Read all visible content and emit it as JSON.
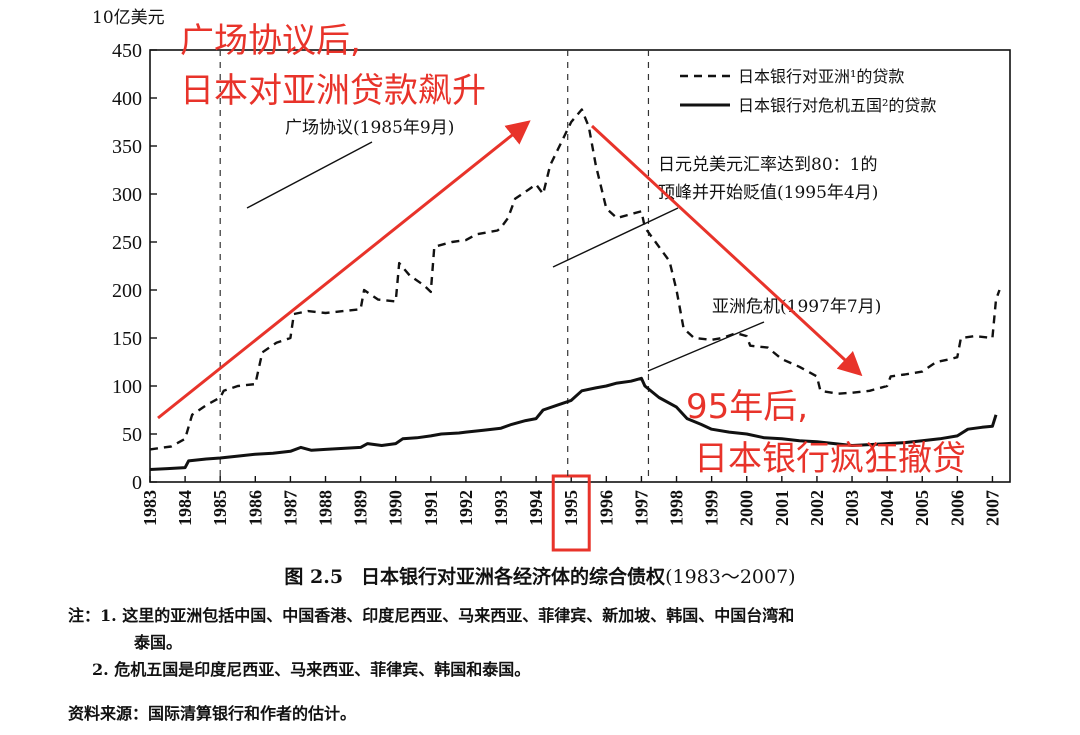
{
  "chart_data": {
    "type": "line",
    "y_unit": "10亿美元",
    "ylim": [
      0,
      450
    ],
    "y_ticks": [
      0,
      50,
      100,
      150,
      200,
      250,
      300,
      350,
      400,
      450
    ],
    "x_ticks": [
      "1983",
      "1984",
      "1985",
      "1986",
      "1987",
      "1988",
      "1989",
      "1990",
      "1991",
      "1992",
      "1993",
      "1994",
      "1995",
      "1996",
      "1997",
      "1998",
      "1999",
      "2000",
      "2001",
      "2002",
      "2003",
      "2004",
      "2005",
      "2006",
      "2007"
    ],
    "highlighted_tick": "1995",
    "dashed_vlines": [
      1985,
      1994.9,
      1997.2
    ],
    "grid": false,
    "legend": "top-right",
    "series": [
      {
        "name": "日本银行对亚洲¹的贷款",
        "style": "dashed",
        "points": [
          [
            1983,
            34
          ],
          [
            1983.6,
            37
          ],
          [
            1984,
            45
          ],
          [
            1984.2,
            70
          ],
          [
            1984.6,
            80
          ],
          [
            1985,
            88
          ],
          [
            1985.1,
            95
          ],
          [
            1985.5,
            100
          ],
          [
            1986,
            102
          ],
          [
            1986.2,
            135
          ],
          [
            1986.6,
            145
          ],
          [
            1987,
            150
          ],
          [
            1987.1,
            175
          ],
          [
            1987.5,
            178
          ],
          [
            1988,
            176
          ],
          [
            1988.5,
            178
          ],
          [
            1989,
            180
          ],
          [
            1989.1,
            200
          ],
          [
            1989.5,
            190
          ],
          [
            1990,
            188
          ],
          [
            1990.1,
            228
          ],
          [
            1990.4,
            215
          ],
          [
            1990.8,
            205
          ],
          [
            1991,
            198
          ],
          [
            1991.1,
            245
          ],
          [
            1991.6,
            250
          ],
          [
            1992,
            252
          ],
          [
            1992.3,
            258
          ],
          [
            1992.9,
            262
          ],
          [
            1993,
            265
          ],
          [
            1993.2,
            275
          ],
          [
            1993.4,
            295
          ],
          [
            1993.8,
            305
          ],
          [
            1994,
            310
          ],
          [
            1994.2,
            300
          ],
          [
            1994.4,
            330
          ],
          [
            1994.8,
            360
          ],
          [
            1995,
            375
          ],
          [
            1995.3,
            388
          ],
          [
            1995.5,
            370
          ],
          [
            1995.7,
            330
          ],
          [
            1996,
            285
          ],
          [
            1996.3,
            275
          ],
          [
            1996.6,
            278
          ],
          [
            1997,
            282
          ],
          [
            1997.1,
            265
          ],
          [
            1997.4,
            250
          ],
          [
            1997.8,
            230
          ],
          [
            1998,
            200
          ],
          [
            1998.2,
            160
          ],
          [
            1998.5,
            150
          ],
          [
            1999,
            148
          ],
          [
            1999.3,
            150
          ],
          [
            1999.7,
            155
          ],
          [
            2000,
            152
          ],
          [
            2000.1,
            142
          ],
          [
            2000.6,
            140
          ],
          [
            2001,
            128
          ],
          [
            2001.5,
            120
          ],
          [
            2002,
            110
          ],
          [
            2002.1,
            95
          ],
          [
            2002.6,
            92
          ],
          [
            2003,
            93
          ],
          [
            2003.5,
            95
          ],
          [
            2004,
            100
          ],
          [
            2004.1,
            110
          ],
          [
            2004.5,
            112
          ],
          [
            2005,
            115
          ],
          [
            2005.4,
            125
          ],
          [
            2005.8,
            128
          ],
          [
            2006,
            130
          ],
          [
            2006.1,
            150
          ],
          [
            2006.5,
            152
          ],
          [
            2007,
            150
          ],
          [
            2007.1,
            190
          ],
          [
            2007.2,
            200
          ]
        ]
      },
      {
        "name": "日本银行对危机五国²的贷款",
        "style": "solid",
        "points": [
          [
            1983,
            13
          ],
          [
            1983.5,
            14
          ],
          [
            1984,
            15
          ],
          [
            1984.1,
            22
          ],
          [
            1984.6,
            24
          ],
          [
            1985,
            25
          ],
          [
            1985.5,
            27
          ],
          [
            1986,
            29
          ],
          [
            1986.5,
            30
          ],
          [
            1987,
            32
          ],
          [
            1987.3,
            36
          ],
          [
            1987.6,
            33
          ],
          [
            1988,
            34
          ],
          [
            1988.5,
            35
          ],
          [
            1989,
            36
          ],
          [
            1989.2,
            40
          ],
          [
            1989.6,
            38
          ],
          [
            1990,
            40
          ],
          [
            1990.2,
            45
          ],
          [
            1990.6,
            46
          ],
          [
            1991,
            48
          ],
          [
            1991.3,
            50
          ],
          [
            1991.8,
            51
          ],
          [
            1992,
            52
          ],
          [
            1992.5,
            54
          ],
          [
            1993,
            56
          ],
          [
            1993.3,
            60
          ],
          [
            1993.7,
            64
          ],
          [
            1994,
            66
          ],
          [
            1994.2,
            75
          ],
          [
            1994.6,
            80
          ],
          [
            1995,
            85
          ],
          [
            1995.3,
            95
          ],
          [
            1995.7,
            98
          ],
          [
            1996,
            100
          ],
          [
            1996.3,
            103
          ],
          [
            1996.7,
            105
          ],
          [
            1997,
            108
          ],
          [
            1997.1,
            100
          ],
          [
            1997.5,
            88
          ],
          [
            1998,
            78
          ],
          [
            1998.3,
            66
          ],
          [
            1998.7,
            60
          ],
          [
            1999,
            55
          ],
          [
            1999.5,
            52
          ],
          [
            2000,
            50
          ],
          [
            2000.5,
            46
          ],
          [
            2001,
            45
          ],
          [
            2001.5,
            43
          ],
          [
            2002,
            42
          ],
          [
            2002.5,
            40
          ],
          [
            2003,
            38
          ],
          [
            2003.5,
            39
          ],
          [
            2004,
            40
          ],
          [
            2004.5,
            41
          ],
          [
            2005,
            43
          ],
          [
            2005.5,
            45
          ],
          [
            2006,
            48
          ],
          [
            2006.3,
            55
          ],
          [
            2006.7,
            57
          ],
          [
            2007,
            58
          ],
          [
            2007.1,
            70
          ]
        ]
      }
    ],
    "annotations": {
      "plaza": "广场协议(1985年9月)",
      "yen_line1": "日元兑美元汇率达到80：1的",
      "yen_line2": "顶峰并开始贬值(1995年4月)",
      "asia_crisis": "亚洲危机(1997年7月)"
    },
    "overlay": {
      "red_top_line1": "广场协议后,",
      "red_top_line2": "日本对亚洲贷款飙升",
      "red_bottom_line1": "95年后,",
      "red_bottom_line2": "日本银行疯狂撤贷",
      "color": "#e8332a"
    }
  },
  "caption": {
    "number": "图 2.5",
    "title": "日本银行对亚洲各经济体的综合债权",
    "range": "(1983～2007)"
  },
  "notes": {
    "line1": "注：1.  这里的亚洲包括中国、中国香港、印度尼西亚、马来西亚、菲律宾、新加坡、韩国、中国台湾和",
    "line2": "泰国。",
    "line3": "2.  危机五国是印度尼西亚、马来西亚、菲律宾、韩国和泰国。",
    "source": "资料来源：国际清算银行和作者的估计。"
  }
}
